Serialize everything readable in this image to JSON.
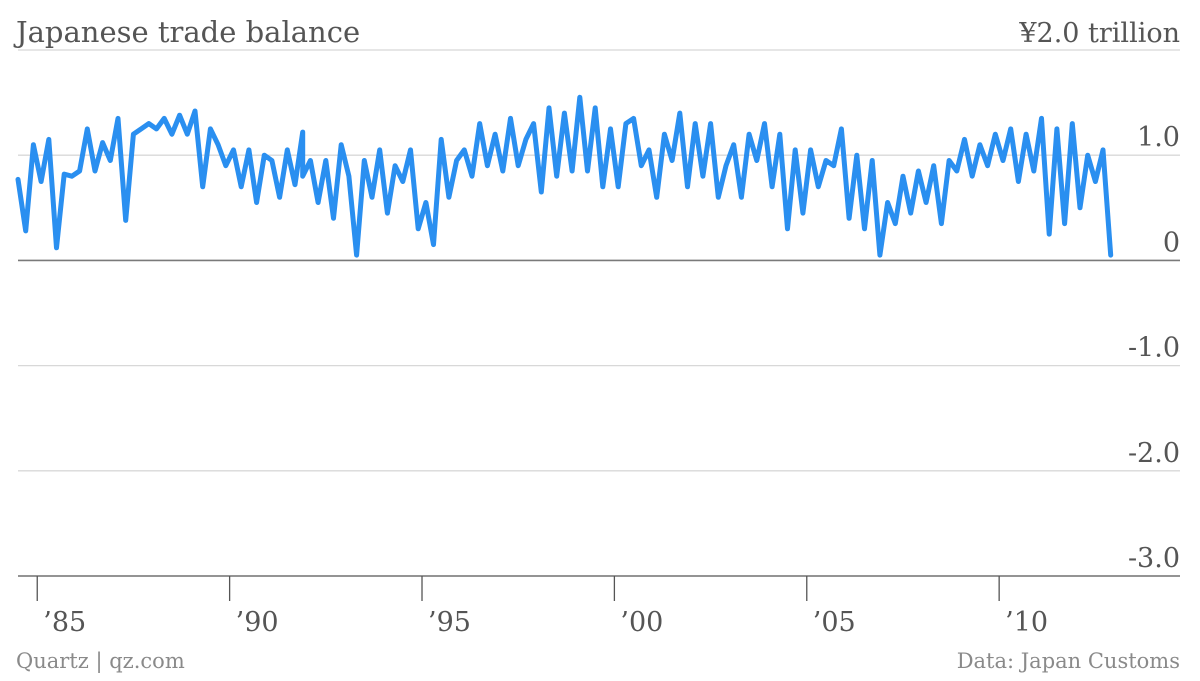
{
  "header": {
    "title": "Japanese trade balance",
    "unit_label": "¥2.0 trillion"
  },
  "footer": {
    "credit": "Quartz | qz.com",
    "source": "Data: Japan Customs"
  },
  "colors": {
    "line": "#2a8ff0",
    "text": "#555555",
    "footer": "#8a8a8a",
    "grid": "#d8d8d8"
  },
  "chart_data": {
    "type": "line",
    "title": "Japanese trade balance",
    "unit": "¥ trillion",
    "xlim": [
      1984.5,
      2014.7
    ],
    "ylim": [
      -3.0,
      2.0
    ],
    "x_ticks": [
      {
        "value": 1985,
        "label": "’85"
      },
      {
        "value": 1990,
        "label": "’90"
      },
      {
        "value": 1995,
        "label": "’95"
      },
      {
        "value": 2000,
        "label": "’00"
      },
      {
        "value": 2005,
        "label": "’05"
      },
      {
        "value": 2010,
        "label": "’10"
      }
    ],
    "y_ticks": [
      {
        "value": 2.0,
        "label": "¥2.0 trillion"
      },
      {
        "value": 1.0,
        "label": "1.0"
      },
      {
        "value": 0,
        "label": "0"
      },
      {
        "value": -1.0,
        "label": "-1.0"
      },
      {
        "value": -2.0,
        "label": "-2.0"
      },
      {
        "value": -3.0,
        "label": "-3.0"
      }
    ],
    "grid": true,
    "series": [
      {
        "points": [
          [
            1984.5,
            0.77
          ],
          [
            1984.7,
            0.28
          ],
          [
            1984.9,
            1.1
          ],
          [
            1985.1,
            0.75
          ],
          [
            1985.3,
            1.15
          ],
          [
            1985.5,
            0.12
          ],
          [
            1985.7,
            0.82
          ],
          [
            1985.9,
            0.8
          ],
          [
            1986.1,
            0.85
          ],
          [
            1986.3,
            1.25
          ],
          [
            1986.5,
            0.85
          ],
          [
            1986.7,
            1.12
          ],
          [
            1986.9,
            0.95
          ],
          [
            1987.1,
            1.35
          ],
          [
            1987.3,
            0.38
          ],
          [
            1987.5,
            1.2
          ],
          [
            1987.7,
            1.25
          ],
          [
            1987.9,
            1.3
          ],
          [
            1988.1,
            1.25
          ],
          [
            1988.3,
            1.35
          ],
          [
            1988.5,
            1.2
          ],
          [
            1988.7,
            1.38
          ],
          [
            1988.9,
            1.2
          ],
          [
            1989.1,
            1.42
          ],
          [
            1989.3,
            0.7
          ],
          [
            1989.5,
            1.25
          ],
          [
            1989.7,
            1.1
          ],
          [
            1989.9,
            0.9
          ],
          [
            1990.1,
            1.05
          ],
          [
            1990.3,
            0.7
          ],
          [
            1990.5,
            1.05
          ],
          [
            1990.7,
            0.55
          ],
          [
            1990.9,
            1.0
          ],
          [
            1991.1,
            0.95
          ],
          [
            1991.3,
            0.6
          ],
          [
            1991.5,
            1.05
          ],
          [
            1991.7,
            0.72
          ],
          [
            1991.9,
            1.22
          ],
          [
            1991.9,
            0.8
          ],
          [
            1992.1,
            0.95
          ],
          [
            1992.3,
            0.55
          ],
          [
            1992.5,
            0.95
          ],
          [
            1992.7,
            0.4
          ],
          [
            1992.9,
            1.1
          ],
          [
            1993.1,
            0.8
          ],
          [
            1993.3,
            0.05
          ],
          [
            1993.5,
            0.95
          ],
          [
            1993.7,
            0.6
          ],
          [
            1993.9,
            1.05
          ],
          [
            1994.1,
            0.45
          ],
          [
            1994.3,
            0.9
          ],
          [
            1994.5,
            0.75
          ],
          [
            1994.7,
            1.05
          ],
          [
            1994.9,
            0.3
          ],
          [
            1995.1,
            0.55
          ],
          [
            1995.3,
            0.15
          ],
          [
            1995.5,
            1.15
          ],
          [
            1995.7,
            0.6
          ],
          [
            1995.9,
            0.95
          ],
          [
            1996.1,
            1.05
          ],
          [
            1996.3,
            0.8
          ],
          [
            1996.5,
            1.3
          ],
          [
            1996.7,
            0.9
          ],
          [
            1996.9,
            1.2
          ],
          [
            1997.1,
            0.85
          ],
          [
            1997.3,
            1.35
          ],
          [
            1997.5,
            0.9
          ],
          [
            1997.7,
            1.15
          ],
          [
            1997.9,
            1.3
          ],
          [
            1998.1,
            0.65
          ],
          [
            1998.3,
            1.45
          ],
          [
            1998.5,
            0.8
          ],
          [
            1998.7,
            1.4
          ],
          [
            1998.9,
            0.85
          ],
          [
            1999.1,
            1.55
          ],
          [
            1999.3,
            0.85
          ],
          [
            1999.5,
            1.45
          ],
          [
            1999.7,
            0.7
          ],
          [
            1999.9,
            1.25
          ],
          [
            2000.1,
            0.7
          ],
          [
            2000.3,
            1.3
          ],
          [
            2000.5,
            1.35
          ],
          [
            2000.7,
            0.9
          ],
          [
            2000.9,
            1.05
          ],
          [
            2001.1,
            0.6
          ],
          [
            2001.3,
            1.2
          ],
          [
            2001.5,
            0.95
          ],
          [
            2001.7,
            1.4
          ],
          [
            2001.9,
            0.7
          ],
          [
            2002.1,
            1.3
          ],
          [
            2002.3,
            0.8
          ],
          [
            2002.5,
            1.3
          ],
          [
            2002.7,
            0.6
          ],
          [
            2002.9,
            0.9
          ],
          [
            2003.1,
            1.1
          ],
          [
            2003.3,
            0.6
          ],
          [
            2003.5,
            1.2
          ],
          [
            2003.7,
            0.95
          ],
          [
            2003.9,
            1.3
          ],
          [
            2004.1,
            0.7
          ],
          [
            2004.3,
            1.2
          ],
          [
            2004.5,
            0.3
          ],
          [
            2004.7,
            1.05
          ],
          [
            2004.9,
            0.45
          ],
          [
            2005.1,
            1.05
          ],
          [
            2005.3,
            0.7
          ],
          [
            2005.5,
            0.95
          ],
          [
            2005.7,
            0.9
          ],
          [
            2005.9,
            1.25
          ],
          [
            2006.1,
            0.4
          ],
          [
            2006.3,
            1.0
          ],
          [
            2006.5,
            0.3
          ],
          [
            2006.7,
            0.95
          ],
          [
            2006.9,
            0.05
          ],
          [
            2007.1,
            0.55
          ],
          [
            2007.3,
            0.35
          ],
          [
            2007.5,
            0.8
          ],
          [
            2007.7,
            0.45
          ],
          [
            2007.9,
            0.85
          ],
          [
            2008.1,
            0.55
          ],
          [
            2008.3,
            0.9
          ],
          [
            2008.5,
            0.35
          ],
          [
            2008.7,
            0.95
          ],
          [
            2008.9,
            0.85
          ],
          [
            2009.1,
            1.15
          ],
          [
            2009.3,
            0.8
          ],
          [
            2009.5,
            1.1
          ],
          [
            2009.7,
            0.9
          ],
          [
            2009.9,
            1.2
          ],
          [
            2010.1,
            0.95
          ],
          [
            2010.3,
            1.25
          ],
          [
            2010.5,
            0.75
          ],
          [
            2010.7,
            1.2
          ],
          [
            2010.9,
            0.85
          ],
          [
            2011.1,
            1.35
          ],
          [
            2011.3,
            0.25
          ],
          [
            2011.5,
            1.25
          ],
          [
            2011.7,
            0.35
          ],
          [
            2011.9,
            1.3
          ],
          [
            2012.1,
            0.5
          ],
          [
            2012.3,
            1.0
          ],
          [
            2012.5,
            0.75
          ],
          [
            2012.7,
            1.05
          ],
          [
            2012.9,
            0.05
          ]
        ]
      }
    ]
  }
}
